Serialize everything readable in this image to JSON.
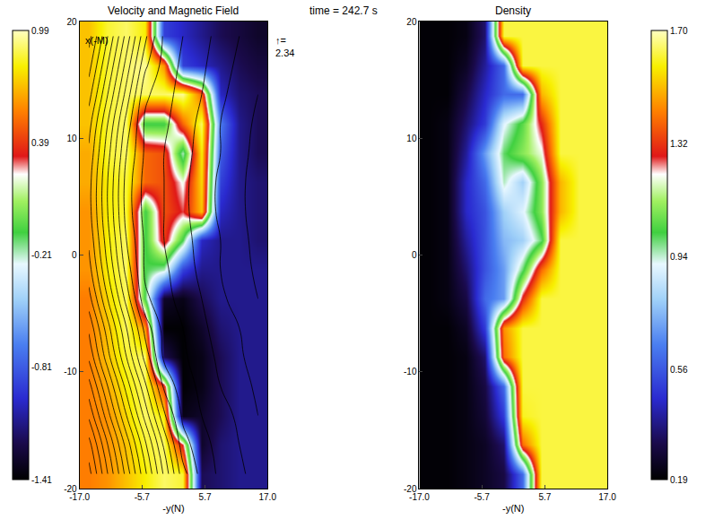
{
  "chart_data": [
    {
      "type": "heatmap",
      "title": "Velocity and Magnetic Field",
      "x_label": "-y(N)",
      "y_label": "x(-M)",
      "x": [
        -15.3,
        -11.9,
        -8.5,
        -5.1,
        -1.7,
        1.7,
        5.1,
        8.5,
        11.9,
        15.3
      ],
      "y": [
        -18.75,
        -16.25,
        -13.75,
        -11.25,
        -8.75,
        -6.25,
        -3.75,
        -1.25,
        1.25,
        3.75,
        6.25,
        8.75,
        11.25,
        13.75,
        16.25,
        18.75
      ],
      "values": [
        [
          0.55,
          0.6,
          0.7,
          0.8,
          0.9,
          0.85,
          -1.2,
          -1.15,
          -1.1,
          -1.1
        ],
        [
          0.55,
          0.6,
          0.7,
          0.85,
          0.9,
          0.3,
          -1.3,
          -1.15,
          -1.1,
          -1.1
        ],
        [
          0.55,
          0.6,
          0.75,
          0.9,
          0.8,
          -1.35,
          -1.3,
          -1.2,
          -1.1,
          -1.1
        ],
        [
          0.55,
          0.65,
          0.8,
          0.9,
          0.4,
          -1.4,
          -1.35,
          -1.2,
          -1.1,
          -1.1
        ],
        [
          0.55,
          0.7,
          0.85,
          0.9,
          -1.2,
          -1.4,
          -1.35,
          -1.2,
          -1.1,
          -1.1
        ],
        [
          0.55,
          0.7,
          0.9,
          0.6,
          -1.4,
          -1.4,
          -1.3,
          -1.15,
          -1.1,
          -1.1
        ],
        [
          0.55,
          0.75,
          0.9,
          -0.1,
          -1.3,
          -1.35,
          -1.2,
          -1.1,
          -1.1,
          -1.1
        ],
        [
          0.6,
          0.8,
          0.9,
          -0.1,
          -0.2,
          -0.9,
          -1.1,
          -1.1,
          -1.1,
          -1.1
        ],
        [
          0.6,
          0.8,
          0.9,
          -0.1,
          0.4,
          -0.1,
          -1.0,
          -1.1,
          -1.1,
          -1.15
        ],
        [
          0.6,
          0.8,
          0.85,
          -0.1,
          0.45,
          0.3,
          0.7,
          -1.0,
          -1.1,
          -1.15
        ],
        [
          0.65,
          0.8,
          0.85,
          0.5,
          0.45,
          0.2,
          0.75,
          -0.9,
          -1.1,
          -1.15
        ],
        [
          0.65,
          0.85,
          0.9,
          0.5,
          0.45,
          -0.2,
          0.8,
          -0.8,
          -1.1,
          -1.2
        ],
        [
          0.7,
          0.85,
          0.9,
          -0.1,
          -0.1,
          0.5,
          0.9,
          -0.7,
          -1.1,
          -1.2
        ],
        [
          0.7,
          0.85,
          0.9,
          0.9,
          0.9,
          0.95,
          0.5,
          -1.0,
          -1.15,
          -1.2
        ],
        [
          0.7,
          0.85,
          0.9,
          0.95,
          0.6,
          -0.9,
          -1.0,
          -1.1,
          -1.2,
          -1.25
        ],
        [
          0.7,
          0.85,
          0.9,
          0.8,
          -0.9,
          -1.0,
          -1.1,
          -1.2,
          -1.25,
          -1.3
        ]
      ],
      "field_lines": [
        [
          9.2,
          7.5,
          5.8,
          4.1,
          2.4,
          0.7,
          -0.2,
          -0.6,
          -0.9,
          -1.2
        ],
        [
          8.7,
          7.0,
          5.3,
          3.6,
          1.9,
          0.2,
          -0.3,
          -0.7,
          -1.0,
          -1.3
        ],
        [
          7.9,
          6.2,
          4.5,
          2.8,
          1.1,
          -0.1,
          -0.5,
          -0.8,
          -1.1,
          -1.5
        ],
        [
          7.2,
          5.5,
          3.8,
          2.1,
          0.4,
          -0.3,
          -0.6,
          -1.0,
          -1.3,
          -1.6
        ],
        [
          6.4,
          4.7,
          3.0,
          1.3,
          -0.1,
          -0.4,
          -0.8,
          -1.1,
          -1.4,
          -1.8
        ],
        [
          5.9,
          4.2,
          2.5,
          0.8,
          -0.2,
          -0.5,
          -0.9,
          -1.2,
          -1.5,
          -1.9
        ],
        [
          5.2,
          3.5,
          1.8,
          0.1,
          -0.3,
          -0.7,
          -1.0,
          -1.4,
          -1.7,
          -2.0
        ],
        [
          4.7,
          3.0,
          1.3,
          -0.1,
          -0.4,
          -0.8,
          -1.1,
          -1.5,
          -1.8,
          -2.1
        ],
        [
          4.4,
          2.7,
          1.0,
          -0.1,
          -0.5,
          -0.8,
          -1.2,
          -1.5,
          -1.8,
          -2.2
        ],
        [
          4.2,
          2.5,
          0.8,
          -0.2,
          -0.5,
          -0.9,
          -1.2,
          -1.6,
          -1.9,
          -2.2
        ],
        [
          4.2,
          2.5,
          0.8,
          -0.2,
          -0.5,
          -0.9,
          -1.2,
          -1.6,
          -1.9,
          -2.2
        ],
        [
          4.4,
          2.7,
          1.0,
          -0.1,
          -0.5,
          -0.8,
          -1.2,
          -1.5,
          -1.8,
          -2.2
        ],
        [
          4.7,
          3.0,
          1.3,
          -0.1,
          -0.4,
          -0.8,
          -1.1,
          -1.5,
          -1.8,
          -2.1
        ],
        [
          5.2,
          3.5,
          1.8,
          0.1,
          -0.3,
          -0.7,
          -1.0,
          -1.4,
          -1.7,
          -2.0
        ],
        [
          5.7,
          4.0,
          2.3,
          0.6,
          -0.2,
          -0.6,
          -0.9,
          -1.3,
          -1.6,
          -1.9
        ],
        [
          6.2,
          4.5,
          2.8,
          1.1,
          -0.1,
          -0.5,
          -0.8,
          -1.2,
          -1.5,
          -1.8
        ]
      ],
      "xlim": [
        -17,
        17
      ],
      "ylim": [
        -20,
        20
      ],
      "xticks": [
        {
          "value": -17,
          "label": "-17.0"
        },
        -5.7,
        5.7,
        {
          "value": 17,
          "label": "17.0"
        }
      ],
      "yticks": [
        -20,
        -10,
        0,
        10,
        20
      ],
      "colorbar": {
        "range": [
          -1.41,
          0.99
        ],
        "ticks": [
          -1.41,
          -0.81,
          -0.21,
          0.39,
          0.99
        ]
      },
      "annotations": [
        {
          "text": "time = 242.7 s"
        },
        {
          "text": "↑=",
          "value": 2.34
        }
      ]
    },
    {
      "type": "heatmap",
      "title": "Density",
      "x_label": "-y(N)",
      "x": [
        -15.3,
        -11.9,
        -8.5,
        -5.1,
        -1.7,
        1.7,
        5.1,
        8.5,
        11.9,
        15.3
      ],
      "y": [
        -18.75,
        -16.25,
        -13.75,
        -11.25,
        -8.75,
        -6.25,
        -3.75,
        -1.25,
        1.25,
        3.75,
        6.25,
        8.75,
        11.25,
        13.75,
        16.25,
        18.75
      ],
      "values": [
        [
          0.2,
          0.2,
          0.22,
          0.25,
          0.3,
          0.6,
          1.62,
          1.62,
          1.62,
          1.62
        ],
        [
          0.2,
          0.2,
          0.22,
          0.25,
          0.35,
          1.4,
          1.62,
          1.62,
          1.62,
          1.62
        ],
        [
          0.2,
          0.2,
          0.22,
          0.28,
          0.5,
          1.6,
          1.62,
          1.62,
          1.62,
          1.62
        ],
        [
          0.2,
          0.2,
          0.22,
          0.3,
          0.6,
          1.62,
          1.62,
          1.62,
          1.62,
          1.62
        ],
        [
          0.2,
          0.2,
          0.22,
          0.35,
          1.4,
          1.62,
          1.62,
          1.62,
          1.62,
          1.62
        ],
        [
          0.2,
          0.2,
          0.25,
          0.5,
          1.45,
          1.62,
          1.62,
          1.62,
          1.62,
          1.62
        ],
        [
          0.2,
          0.22,
          0.3,
          0.6,
          0.7,
          1.3,
          1.62,
          1.62,
          1.62,
          1.62
        ],
        [
          0.2,
          0.22,
          0.35,
          0.55,
          0.7,
          1.0,
          1.4,
          1.62,
          1.62,
          1.62
        ],
        [
          0.2,
          0.22,
          0.4,
          0.55,
          0.75,
          0.8,
          1.0,
          1.62,
          1.62,
          1.62
        ],
        [
          0.2,
          0.22,
          0.45,
          0.55,
          0.8,
          0.9,
          1.1,
          1.5,
          1.62,
          1.62
        ],
        [
          0.2,
          0.22,
          0.45,
          0.6,
          0.95,
          0.8,
          1.1,
          1.5,
          1.62,
          1.62
        ],
        [
          0.2,
          0.22,
          0.4,
          0.7,
          1.0,
          1.1,
          1.2,
          1.62,
          1.62,
          1.62
        ],
        [
          0.2,
          0.22,
          0.35,
          0.5,
          0.9,
          1.05,
          1.3,
          1.62,
          1.62,
          1.62
        ],
        [
          0.2,
          0.2,
          0.3,
          0.45,
          0.6,
          0.6,
          1.5,
          1.62,
          1.62,
          1.62
        ],
        [
          0.2,
          0.2,
          0.25,
          0.4,
          0.6,
          1.62,
          1.62,
          1.62,
          1.62,
          1.62
        ],
        [
          0.2,
          0.2,
          0.22,
          0.35,
          1.62,
          1.62,
          1.62,
          1.62,
          1.62,
          1.62
        ]
      ],
      "xlim": [
        -17,
        17
      ],
      "ylim": [
        -20,
        20
      ],
      "xticks": [
        {
          "value": -17,
          "label": "-17.0"
        },
        -5.7,
        5.7,
        {
          "value": 17,
          "label": "17.0"
        }
      ],
      "yticks": [
        -20,
        -10,
        0,
        10,
        20
      ],
      "colorbar": {
        "range": [
          0.19,
          1.7
        ],
        "ticks": [
          0.19,
          0.56,
          0.94,
          1.32,
          {
            "value": 1.7,
            "label": "1.70"
          }
        ]
      }
    }
  ]
}
